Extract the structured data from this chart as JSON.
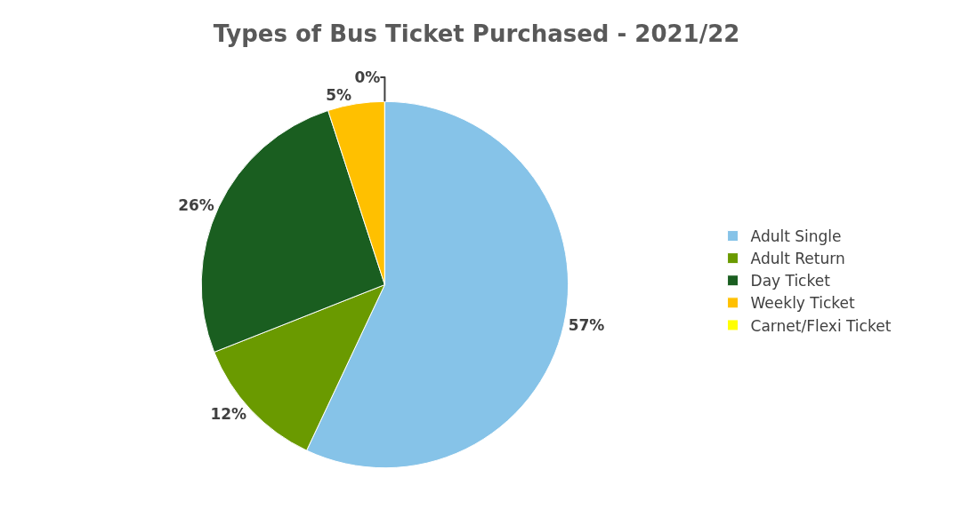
{
  "chart_data": {
    "type": "pie",
    "title": "Types of Bus Ticket Purchased - 2021/22",
    "categories": [
      "Adult Single",
      "Adult Return",
      "Day Ticket",
      "Weekly Ticket",
      "Carnet/Flexi Ticket"
    ],
    "values": [
      57,
      12,
      26,
      5,
      0
    ],
    "colors": [
      "#86c3e8",
      "#6a9a00",
      "#1a5e20",
      "#ffc000",
      "#ffff00"
    ],
    "value_labels": [
      "57%",
      "12%",
      "26%",
      "5%",
      "0%"
    ],
    "legend": "right"
  }
}
